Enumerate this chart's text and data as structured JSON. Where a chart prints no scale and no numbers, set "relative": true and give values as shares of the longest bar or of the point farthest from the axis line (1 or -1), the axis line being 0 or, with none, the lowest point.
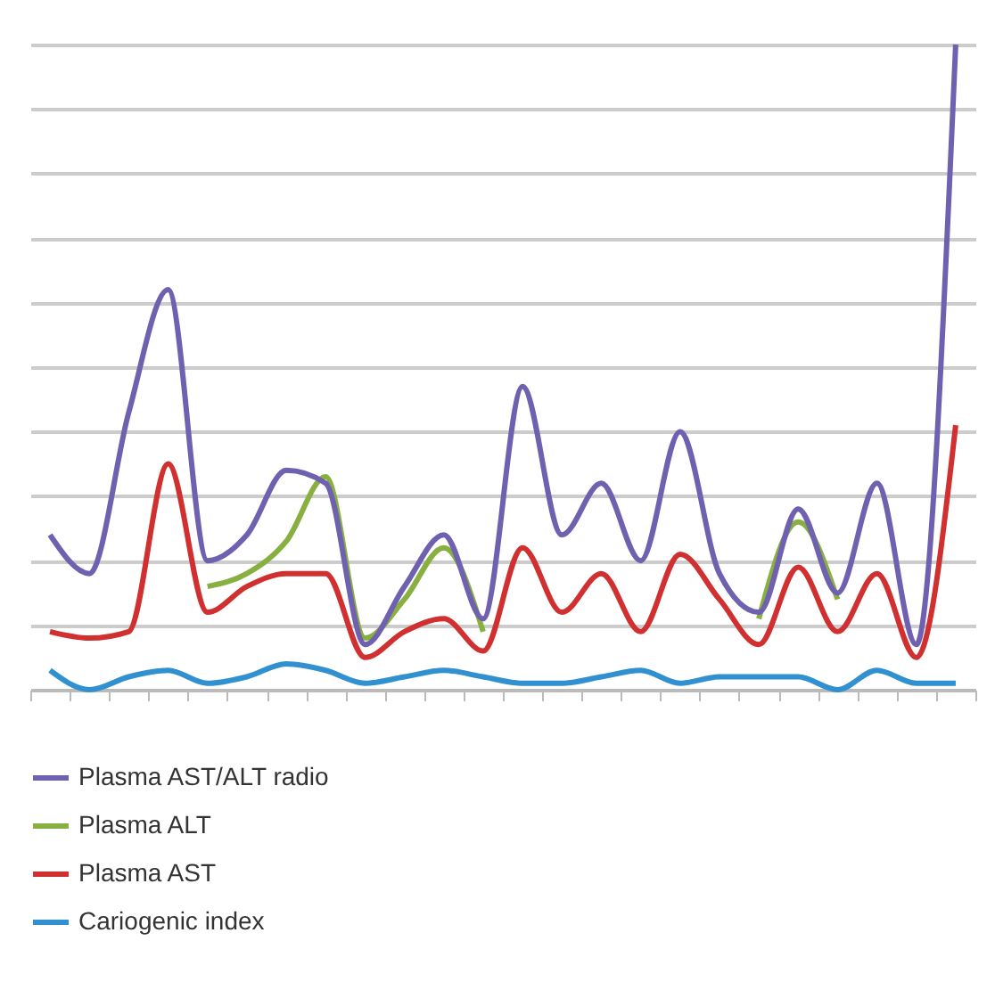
{
  "chart_data": {
    "type": "line",
    "relative": true,
    "grid": "y",
    "legend": "bottom",
    "marker": "none",
    "categories": [
      null,
      null,
      null,
      null,
      null,
      null,
      null,
      null,
      null,
      null,
      null,
      null,
      null,
      null,
      null,
      null,
      null,
      null,
      null,
      null,
      null,
      null,
      null,
      null
    ],
    "series": [
      {
        "name": "Plasma AST/ALT radio",
        "color": "#7060b0",
        "values": [
          0.24,
          0.18,
          0.43,
          0.62,
          0.2,
          0.24,
          0.34,
          0.32,
          0.07,
          0.16,
          0.24,
          0.11,
          0.47,
          0.24,
          0.32,
          0.2,
          0.4,
          0.18,
          0.12,
          0.28,
          0.15,
          0.32,
          0.07,
          1
        ]
      },
      {
        "name": "Plasma ALT",
        "color": "#88b040",
        "values": [
          null,
          null,
          null,
          null,
          0.16,
          0.18,
          0.23,
          0.33,
          0.08,
          0.14,
          0.22,
          0.09,
          null,
          null,
          null,
          null,
          null,
          null,
          0.11,
          0.26,
          0.14,
          null,
          null,
          null
        ]
      },
      {
        "name": "Plasma AST",
        "color": "#d03030",
        "values": [
          0.09,
          0.08,
          0.09,
          0.35,
          0.12,
          0.16,
          0.18,
          0.18,
          0.05,
          0.09,
          0.11,
          0.06,
          0.22,
          0.12,
          0.18,
          0.09,
          0.21,
          0.14,
          0.07,
          0.19,
          0.09,
          0.18,
          0.05,
          0.41
        ]
      },
      {
        "name": "Cariogenic index",
        "color": "#3090d0",
        "values": [
          0.03,
          0.0,
          0.02,
          0.03,
          0.01,
          0.02,
          0.04,
          0.03,
          0.01,
          0.02,
          0.03,
          0.02,
          0.01,
          0.01,
          0.02,
          0.03,
          0.01,
          0.02,
          0.02,
          0.02,
          0.0,
          0.03,
          0.01,
          0.01
        ]
      }
    ]
  }
}
